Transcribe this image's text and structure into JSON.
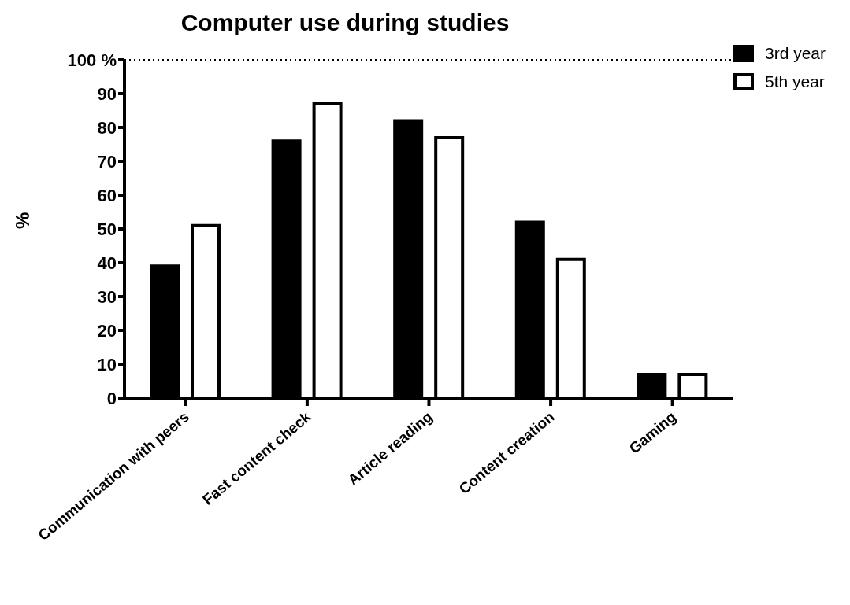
{
  "chart_data": {
    "type": "bar",
    "title": "Computer use during studies",
    "ylabel": "%",
    "categories": [
      "Communication with peers",
      "Fast content check",
      "Article reading",
      "Content creation",
      "Gaming"
    ],
    "series": [
      {
        "name": "3rd year",
        "color": "#000000",
        "values": [
          39,
          76,
          82,
          52,
          7
        ]
      },
      {
        "name": "5th year",
        "color": "#ffffff",
        "values": [
          51,
          87,
          77,
          41,
          7
        ]
      }
    ],
    "ylim": [
      0,
      100
    ],
    "yticks": [
      0,
      10,
      20,
      30,
      40,
      50,
      60,
      70,
      80,
      90,
      {
        "value": 100,
        "label": "100 %"
      }
    ],
    "ref_lines": [
      {
        "axis": "y",
        "value": 100,
        "line_style": "dotted"
      }
    ],
    "grid": false,
    "legend": "top right"
  }
}
